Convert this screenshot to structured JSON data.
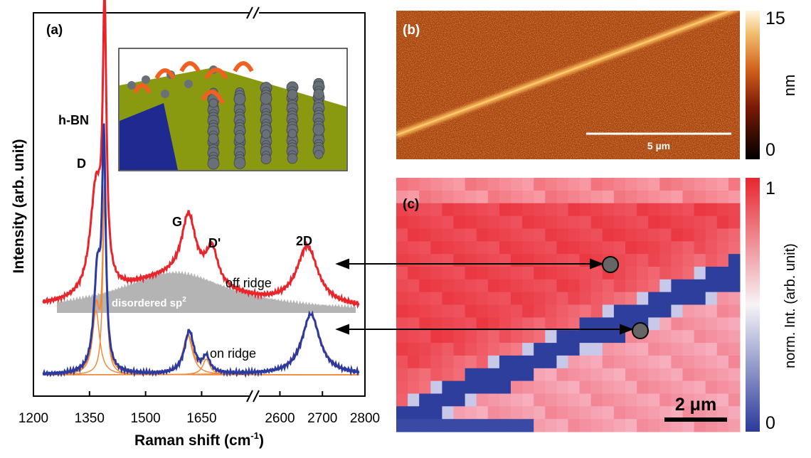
{
  "panel_a": {
    "label": "(a)",
    "y_axis_label": "Intensity (arb. unit)",
    "x_axis_label": "Raman shift (cm",
    "x_axis_label_sup": "-1",
    "x_axis_label_end": ")",
    "xlim_segments": [
      [
        1200,
        1790
      ],
      [
        2539,
        2800
      ]
    ],
    "xticks": [
      1200,
      1350,
      1500,
      1650,
      2600,
      2700,
      2800
    ],
    "peaks": [
      "h-BN",
      "D",
      "G",
      "D'",
      "2D"
    ],
    "off_ridge": "off ridge",
    "on_ridge": "on ridge",
    "disordered": "disordered sp",
    "disordered_sup": "2"
  },
  "panel_b": {
    "label": "(b)",
    "scale_bar": "5 µm",
    "colorbar": {
      "lim": [
        0,
        15
      ],
      "ticks": [
        0,
        15
      ],
      "label": "nm"
    }
  },
  "panel_c": {
    "label": "(c)",
    "scale_bar": "2 μm",
    "colorbar": {
      "lim": [
        0,
        1
      ],
      "ticks": [
        0,
        1
      ],
      "label": "norm. Int. (arb. unit)"
    }
  }
}
